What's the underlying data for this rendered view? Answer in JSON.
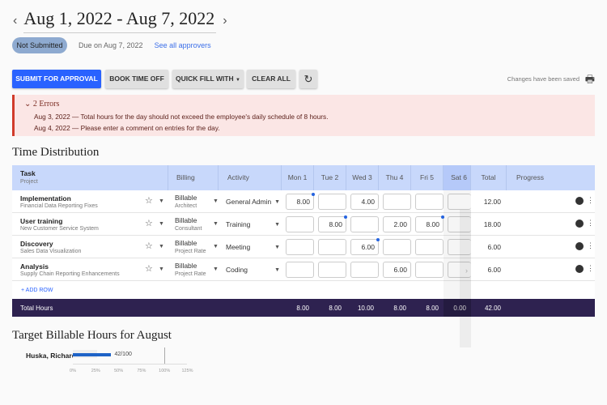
{
  "header": {
    "date_range": "Aug 1, 2022 - Aug 7, 2022",
    "status": "Not Submitted",
    "due": "Due on Aug 7, 2022",
    "approvers_link": "See all approvers"
  },
  "toolbar": {
    "submit": "SUBMIT FOR APPROVAL",
    "book_time_off": "BOOK TIME OFF",
    "quick_fill": "QUICK FILL WITH",
    "clear_all": "CLEAR ALL",
    "saved_status": "Changes have been saved"
  },
  "errors": {
    "title": "2 Errors",
    "items": [
      "Aug 3, 2022 — Total hours for the day should not exceed the employee's daily schedule of 8 hours.",
      "Aug 4, 2022 — Please enter a comment on entries for the day."
    ]
  },
  "time_distribution": {
    "title": "Time Distribution",
    "columns": {
      "task": "Task",
      "project": "Project",
      "billing": "Billing",
      "activity": "Activity",
      "days": [
        "Mon 1",
        "Tue 2",
        "Wed 3",
        "Thu 4",
        "Fri 5",
        "Sat 6"
      ],
      "total": "Total",
      "progress": "Progress"
    },
    "rows": [
      {
        "task": "Implementation",
        "project": "Financial Data Reporting Fixes",
        "billing": "Billable",
        "rate": "Architect",
        "activity": "General Admin",
        "hours": [
          "8.00",
          "",
          "4.00",
          "",
          "",
          ""
        ],
        "comments": [
          true,
          false,
          false,
          false,
          false,
          false
        ],
        "total": "12.00"
      },
      {
        "task": "User training",
        "project": "New Customer Service System",
        "billing": "Billable",
        "rate": "Consultant",
        "activity": "Training",
        "hours": [
          "",
          "8.00",
          "",
          "2.00",
          "8.00",
          ""
        ],
        "comments": [
          false,
          true,
          false,
          false,
          true,
          false
        ],
        "total": "18.00"
      },
      {
        "task": "Discovery",
        "project": "Sales Data Visualization",
        "billing": "Billable",
        "rate": "Project Rate",
        "activity": "Meeting",
        "hours": [
          "",
          "",
          "6.00",
          "",
          "",
          ""
        ],
        "comments": [
          false,
          false,
          true,
          false,
          false,
          false
        ],
        "total": "6.00"
      },
      {
        "task": "Analysis",
        "project": "Supply Chain Reporting Enhancements",
        "billing": "Billable",
        "rate": "Project Rate",
        "activity": "Coding",
        "hours": [
          "",
          "",
          "",
          "6.00",
          "",
          ""
        ],
        "comments": [
          false,
          false,
          false,
          false,
          false,
          false
        ],
        "total": "6.00"
      }
    ],
    "add_row": "+ ADD ROW",
    "totals": {
      "label": "Total Hours",
      "days": [
        "8.00",
        "8.00",
        "10.00",
        "8.00",
        "8.00",
        "0.00"
      ],
      "total": "42.00"
    }
  },
  "target": {
    "title": "Target Billable Hours for August",
    "employee": "Huska, Richard",
    "value_label": "42/100",
    "percent": 42,
    "ticks": [
      "0%",
      "25%",
      "50%",
      "75%",
      "100%",
      "125%"
    ]
  },
  "colors": {
    "primary": "#2962ff",
    "error_bg": "#fbe6e5",
    "totals_bg": "#2e2250",
    "header_bg": "#c8d8fb"
  }
}
